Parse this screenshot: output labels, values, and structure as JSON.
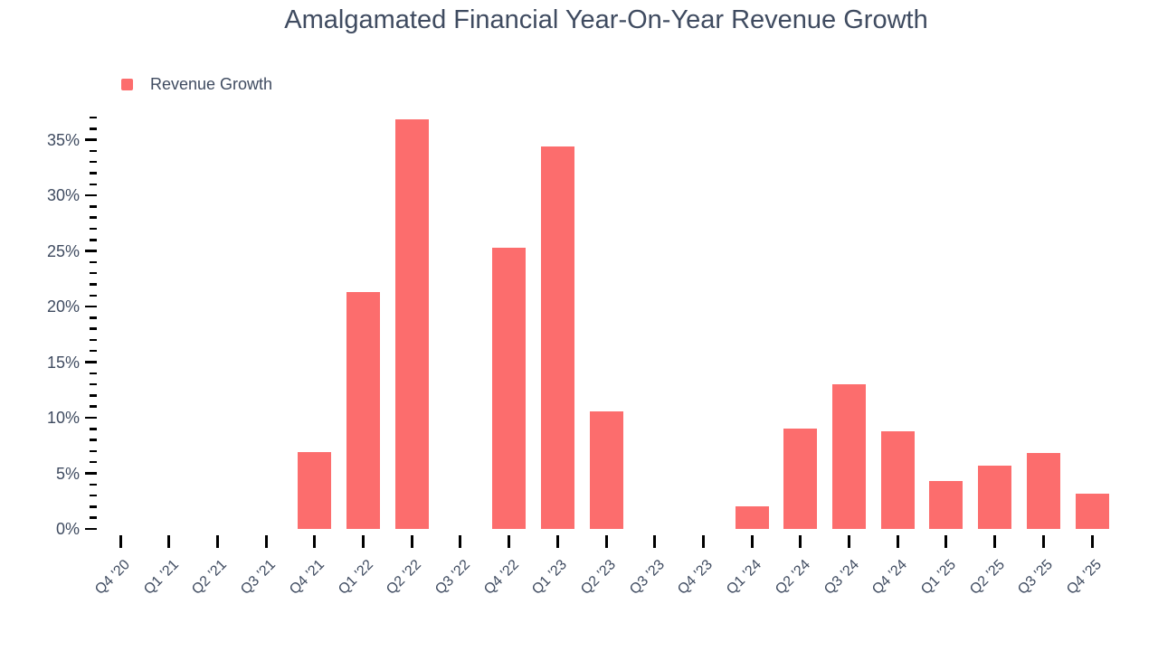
{
  "chart_data": {
    "type": "bar",
    "title": "Amalgamated Financial Year-On-Year Revenue Growth",
    "legend": [
      {
        "label": "Revenue Growth",
        "color": "#fc6d6d"
      }
    ],
    "legend_position": "top-left",
    "categories": [
      "Q4 '20",
      "Q1 '21",
      "Q2 '21",
      "Q3 '21",
      "Q4 '21",
      "Q1 '22",
      "Q2 '22",
      "Q3 '22",
      "Q4 '22",
      "Q1 '23",
      "Q2 '23",
      "Q3 '23",
      "Q4 '23",
      "Q1 '24",
      "Q2 '24",
      "Q3 '24",
      "Q4 '24",
      "Q1 '25",
      "Q2 '25",
      "Q3 '25",
      "Q4 '25"
    ],
    "values": [
      null,
      null,
      null,
      null,
      6.9,
      21.3,
      36.8,
      null,
      25.3,
      34.4,
      10.6,
      null,
      null,
      2.0,
      9.0,
      13.0,
      8.8,
      4.3,
      5.7,
      6.8,
      3.2
    ],
    "value_unit": "%",
    "xlabel": "",
    "ylabel": "",
    "ylim": [
      0,
      37
    ],
    "y_major_step": 5,
    "y_minor_step": 1,
    "y_tick_suffix": "%",
    "x_label_rotation": -45,
    "grid": false,
    "bar_color": "#fc6d6d"
  },
  "colors": {
    "background": "#ffffff",
    "text": "#3f4b60",
    "tick": "#000000",
    "bar": "#fc6d6d"
  }
}
